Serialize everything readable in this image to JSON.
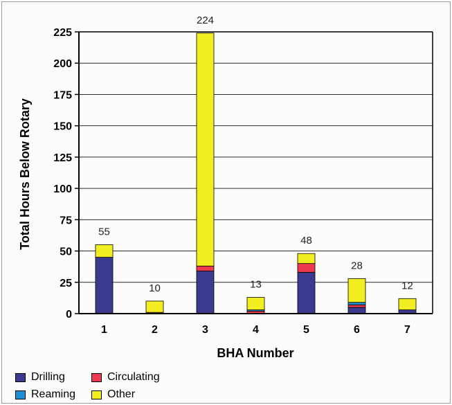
{
  "chart_data": {
    "type": "bar",
    "stacked": true,
    "title": "",
    "xlabel": "BHA Number",
    "ylabel": "Total Hours Below Rotary",
    "ylim": [
      0,
      225
    ],
    "yticks": [
      0,
      25,
      50,
      75,
      100,
      125,
      150,
      175,
      200,
      225
    ],
    "grid": true,
    "legend_position": "bottom-left",
    "categories": [
      "1",
      "2",
      "3",
      "4",
      "5",
      "6",
      "7"
    ],
    "totals": [
      55,
      10,
      224,
      13,
      48,
      28,
      12
    ],
    "series": [
      {
        "name": "Drilling",
        "color": "#3b3a8f",
        "values": [
          45,
          0,
          34,
          0,
          33,
          5,
          3
        ]
      },
      {
        "name": "Circulating",
        "color": "#ee3a4e",
        "values": [
          0,
          1,
          4,
          2,
          7,
          2,
          0
        ]
      },
      {
        "name": "Reaming",
        "color": "#1f8fd6",
        "values": [
          0,
          0,
          0,
          1,
          0,
          2,
          0
        ]
      },
      {
        "name": "Other",
        "color": "#f3ee22",
        "values": [
          10,
          9,
          186,
          10,
          8,
          19,
          9
        ]
      }
    ],
    "legend_order": [
      "Drilling",
      "Circulating",
      "Reaming",
      "Other"
    ]
  }
}
